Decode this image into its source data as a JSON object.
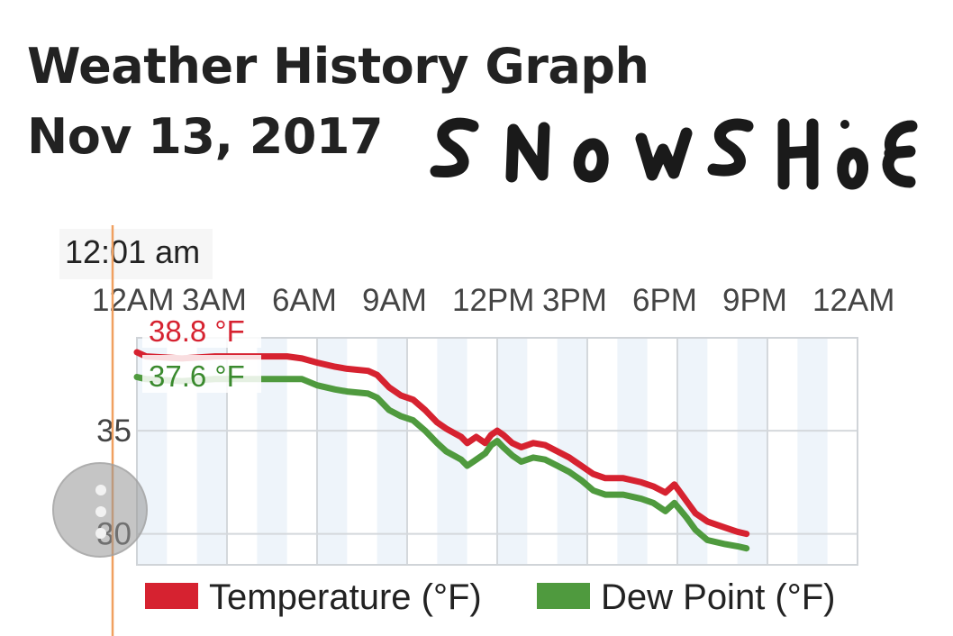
{
  "header": {
    "title": "Weather History Graph",
    "date": "Nov 13, 2017",
    "annotation": "SNOWSHOE"
  },
  "crosshair": {
    "time_label": "12:01 am"
  },
  "tooltip": {
    "temperature": "38.8 °F",
    "dew_point": "37.6 °F"
  },
  "colors": {
    "temperature": "#d62230",
    "dew_point": "#4f9a3e",
    "crosshair": "#f0a060",
    "band": "#eef4fa"
  },
  "icons": {
    "menu": "vertical-dots-icon"
  },
  "chart_data": {
    "type": "line",
    "x_unit": "hour of day",
    "x_ticks": [
      0,
      3,
      6,
      9,
      12,
      15,
      18,
      21,
      24
    ],
    "x_tick_labels": [
      "12AM",
      "3AM",
      "6AM",
      "9AM",
      "12PM",
      "3PM",
      "6PM",
      "9PM",
      "12AM"
    ],
    "xlim": [
      0,
      24
    ],
    "ylim": [
      28.5,
      39.5
    ],
    "y_ticks": [
      30,
      35
    ],
    "y_tick_labels": [
      "30",
      "35"
    ],
    "grid": true,
    "legend_position": "bottom",
    "series": [
      {
        "name": "Temperature (°F)",
        "color": "#d62230",
        "points": [
          [
            0.0,
            38.8
          ],
          [
            0.3,
            38.6
          ],
          [
            1.5,
            38.5
          ],
          [
            2.6,
            38.6
          ],
          [
            3.5,
            38.6
          ],
          [
            4.5,
            38.6
          ],
          [
            5.0,
            38.6
          ],
          [
            5.5,
            38.5
          ],
          [
            6.0,
            38.3
          ],
          [
            6.6,
            38.1
          ],
          [
            7.0,
            38.0
          ],
          [
            7.7,
            37.9
          ],
          [
            8.0,
            37.7
          ],
          [
            8.4,
            37.1
          ],
          [
            8.8,
            36.7
          ],
          [
            9.2,
            36.5
          ],
          [
            9.6,
            36.0
          ],
          [
            10.0,
            35.4
          ],
          [
            10.3,
            35.1
          ],
          [
            10.8,
            34.7
          ],
          [
            11.0,
            34.4
          ],
          [
            11.3,
            34.7
          ],
          [
            11.6,
            34.4
          ],
          [
            11.8,
            34.8
          ],
          [
            12.0,
            35.0
          ],
          [
            12.2,
            34.8
          ],
          [
            12.5,
            34.4
          ],
          [
            12.8,
            34.2
          ],
          [
            13.2,
            34.4
          ],
          [
            13.6,
            34.3
          ],
          [
            14.0,
            34.0
          ],
          [
            14.4,
            33.7
          ],
          [
            14.8,
            33.3
          ],
          [
            15.2,
            32.9
          ],
          [
            15.6,
            32.7
          ],
          [
            16.2,
            32.7
          ],
          [
            16.8,
            32.5
          ],
          [
            17.2,
            32.3
          ],
          [
            17.6,
            32.0
          ],
          [
            17.9,
            32.4
          ],
          [
            18.3,
            31.6
          ],
          [
            18.6,
            31.0
          ],
          [
            19.0,
            30.6
          ],
          [
            19.6,
            30.3
          ],
          [
            20.0,
            30.1
          ],
          [
            20.3,
            30.0
          ]
        ]
      },
      {
        "name": "Dew Point (°F)",
        "color": "#4f9a3e",
        "points": [
          [
            0.0,
            37.6
          ],
          [
            0.3,
            37.5
          ],
          [
            1.5,
            37.4
          ],
          [
            2.6,
            37.5
          ],
          [
            3.5,
            37.5
          ],
          [
            4.5,
            37.5
          ],
          [
            5.0,
            37.5
          ],
          [
            5.5,
            37.5
          ],
          [
            6.0,
            37.2
          ],
          [
            6.6,
            37.0
          ],
          [
            7.0,
            36.9
          ],
          [
            7.7,
            36.8
          ],
          [
            8.0,
            36.6
          ],
          [
            8.4,
            36.0
          ],
          [
            8.8,
            35.7
          ],
          [
            9.2,
            35.5
          ],
          [
            9.6,
            35.0
          ],
          [
            10.0,
            34.4
          ],
          [
            10.3,
            34.0
          ],
          [
            10.8,
            33.6
          ],
          [
            11.0,
            33.3
          ],
          [
            11.3,
            33.6
          ],
          [
            11.6,
            33.9
          ],
          [
            11.8,
            34.3
          ],
          [
            12.0,
            34.5
          ],
          [
            12.2,
            34.2
          ],
          [
            12.5,
            33.8
          ],
          [
            12.8,
            33.5
          ],
          [
            13.2,
            33.7
          ],
          [
            13.6,
            33.6
          ],
          [
            14.0,
            33.3
          ],
          [
            14.4,
            33.0
          ],
          [
            14.8,
            32.6
          ],
          [
            15.2,
            32.1
          ],
          [
            15.6,
            31.9
          ],
          [
            16.2,
            31.9
          ],
          [
            16.8,
            31.7
          ],
          [
            17.2,
            31.5
          ],
          [
            17.6,
            31.1
          ],
          [
            17.9,
            31.5
          ],
          [
            18.3,
            30.8
          ],
          [
            18.6,
            30.2
          ],
          [
            19.0,
            29.7
          ],
          [
            19.6,
            29.5
          ],
          [
            20.0,
            29.4
          ],
          [
            20.3,
            29.3
          ]
        ]
      }
    ]
  }
}
